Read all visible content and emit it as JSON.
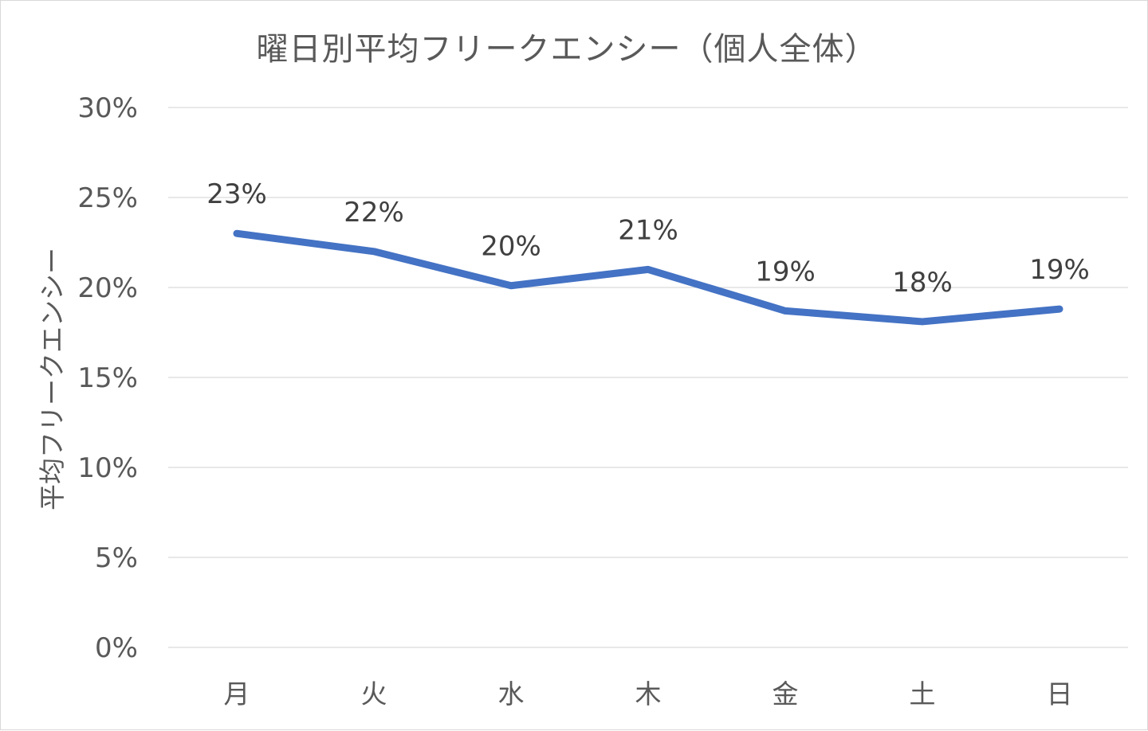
{
  "chart_data": {
    "type": "line",
    "title": "曜日別平均フリークエンシー（個人全体）",
    "xlabel": "",
    "ylabel": "平均フリークエンシー",
    "categories": [
      "月",
      "火",
      "水",
      "木",
      "金",
      "土",
      "日"
    ],
    "series": [
      {
        "values": [
          23.0,
          22.0,
          20.1,
          21.0,
          18.7,
          18.1,
          18.8
        ],
        "data_labels": [
          "23%",
          "22%",
          "20%",
          "21%",
          "19%",
          "18%",
          "19%"
        ],
        "color": "#4472c4"
      }
    ],
    "ylim": [
      0,
      30
    ],
    "yticks": [
      0,
      5,
      10,
      15,
      20,
      25,
      30
    ],
    "ytick_labels": [
      "0%",
      "5%",
      "10%",
      "15%",
      "20%",
      "25%",
      "30%"
    ],
    "grid": true,
    "legend": "none",
    "gridline_color": "#d9d9d9",
    "text_color": "#595959"
  }
}
